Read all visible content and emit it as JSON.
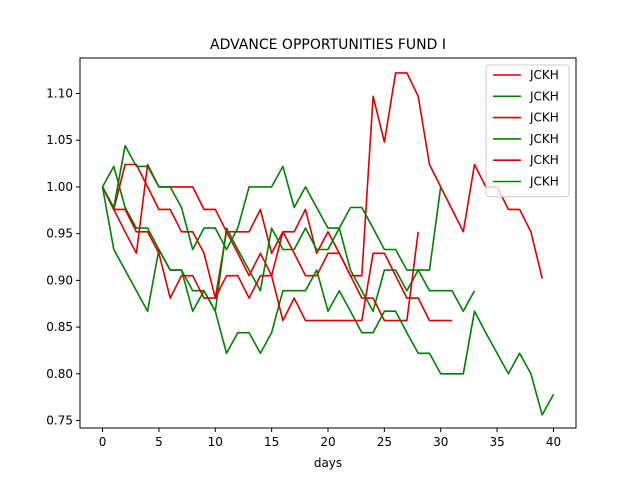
{
  "chart_data": {
    "type": "line",
    "title": "ADVANCE OPPORTUNITIES FUND I",
    "xlabel": "days",
    "ylabel": "",
    "xlim": [
      -2,
      42
    ],
    "ylim": [
      0.742,
      1.138
    ],
    "x_ticks": [
      0,
      5,
      10,
      15,
      20,
      25,
      30,
      35,
      40
    ],
    "y_ticks": [
      0.75,
      0.8,
      0.85,
      0.9,
      0.95,
      1.0,
      1.05,
      1.1
    ],
    "y_tick_labels": [
      "0.75",
      "0.80",
      "0.85",
      "0.90",
      "0.95",
      "1.00",
      "1.05",
      "1.10"
    ],
    "grid": false,
    "legend_position": "top-right",
    "series": [
      {
        "name": "JCKH",
        "color": "#dd0000",
        "x": [
          0,
          1,
          2,
          3,
          4,
          5,
          6,
          7,
          8,
          9,
          10,
          11,
          12,
          13,
          14,
          15,
          16,
          17,
          18,
          19,
          20,
          21,
          22,
          23,
          24,
          25,
          26,
          27,
          28,
          29,
          30,
          31,
          32,
          33,
          34,
          35,
          36,
          37,
          38,
          39
        ],
        "y": [
          1.0,
          0.976,
          1.024,
          1.024,
          1.0,
          0.976,
          0.976,
          0.952,
          0.952,
          0.929,
          0.881,
          0.952,
          0.952,
          0.952,
          0.976,
          0.929,
          0.952,
          0.952,
          0.976,
          0.929,
          0.952,
          0.929,
          0.905,
          0.905,
          1.097,
          1.048,
          1.122,
          1.122,
          1.097,
          1.024,
          1.0,
          0.976,
          0.952,
          1.024,
          1.0,
          1.0,
          0.976,
          0.976,
          0.952,
          0.902
        ]
      },
      {
        "name": "JCKH",
        "color": "#008000",
        "x": [
          0,
          1,
          2,
          3,
          4,
          5,
          6,
          7,
          8,
          9,
          10,
          11,
          12,
          13,
          14,
          15,
          16,
          17,
          18,
          19,
          20,
          21,
          22,
          23,
          24,
          25,
          26,
          27,
          28,
          29,
          30,
          31,
          32,
          33
        ],
        "y": [
          1.0,
          1.022,
          0.978,
          0.956,
          0.956,
          0.933,
          0.911,
          0.911,
          0.889,
          0.889,
          0.867,
          0.956,
          0.933,
          0.911,
          0.889,
          0.956,
          0.933,
          0.933,
          0.956,
          0.933,
          0.933,
          0.956,
          0.911,
          0.889,
          0.867,
          0.911,
          0.911,
          0.889,
          0.911,
          0.889,
          0.889,
          0.889,
          0.867,
          0.889
        ]
      },
      {
        "name": "JCKH",
        "color": "#dd0000",
        "x": [
          0,
          1,
          2,
          3,
          4,
          5,
          6,
          7,
          8,
          9,
          10,
          11,
          12,
          13,
          14,
          15,
          16,
          17,
          18,
          19,
          20,
          21,
          22,
          23,
          24,
          25,
          26,
          27,
          28
        ],
        "y": [
          1.0,
          0.976,
          0.952,
          0.929,
          1.024,
          1.0,
          1.0,
          1.0,
          1.0,
          0.976,
          0.976,
          0.952,
          0.929,
          0.905,
          0.929,
          0.905,
          0.952,
          0.929,
          0.905,
          0.905,
          0.929,
          0.929,
          0.905,
          0.881,
          0.881,
          0.857,
          0.857,
          0.857,
          0.952
        ]
      },
      {
        "name": "JCKH",
        "color": "#008000",
        "x": [
          0,
          1,
          2,
          3,
          4,
          5,
          6,
          7,
          8,
          9,
          10,
          11,
          12,
          13,
          14,
          15,
          16,
          17,
          18,
          19,
          20,
          21,
          22,
          23,
          24,
          25,
          26,
          27,
          28,
          29,
          30,
          31,
          32,
          33,
          34,
          35,
          36,
          37,
          38,
          39,
          40
        ],
        "y": [
          1.0,
          0.933,
          0.911,
          0.889,
          0.867,
          0.933,
          0.911,
          0.911,
          0.867,
          0.889,
          0.867,
          0.822,
          0.844,
          0.844,
          0.822,
          0.844,
          0.889,
          0.889,
          0.889,
          0.911,
          0.867,
          0.889,
          0.867,
          0.844,
          0.844,
          0.867,
          0.867,
          0.844,
          0.822,
          0.822,
          0.8,
          0.8,
          0.8,
          0.867,
          0.844,
          0.822,
          0.8,
          0.822,
          0.8,
          0.756,
          0.778
        ]
      },
      {
        "name": "JCKH",
        "color": "#dd0000",
        "x": [
          0,
          1,
          2,
          3,
          4,
          5,
          6,
          7,
          8,
          9,
          10,
          11,
          12,
          13,
          14,
          15,
          16,
          17,
          18,
          19,
          20,
          21,
          22,
          23,
          24,
          25,
          26,
          27,
          28,
          29,
          30,
          31
        ],
        "y": [
          1.0,
          0.976,
          0.976,
          0.952,
          0.952,
          0.929,
          0.881,
          0.905,
          0.905,
          0.881,
          0.881,
          0.905,
          0.905,
          0.881,
          0.905,
          0.905,
          0.857,
          0.881,
          0.857,
          0.857,
          0.857,
          0.857,
          0.857,
          0.857,
          0.929,
          0.929,
          0.905,
          0.881,
          0.881,
          0.857,
          0.857,
          0.857
        ]
      },
      {
        "name": "JCKH",
        "color": "#008000",
        "x": [
          0,
          1,
          2,
          3,
          4,
          5,
          6,
          7,
          8,
          9,
          10,
          11,
          12,
          13,
          14,
          15,
          16,
          17,
          18,
          19,
          20,
          21,
          22,
          23,
          24,
          25,
          26,
          27,
          28,
          29,
          30
        ],
        "y": [
          1.0,
          0.978,
          1.044,
          1.022,
          1.022,
          1.0,
          1.0,
          0.978,
          0.933,
          0.956,
          0.956,
          0.933,
          0.956,
          1.0,
          1.0,
          1.0,
          1.022,
          0.978,
          1.0,
          0.978,
          0.956,
          0.956,
          0.978,
          0.978,
          0.956,
          0.933,
          0.933,
          0.911,
          0.911,
          0.911,
          1.0
        ]
      }
    ]
  }
}
